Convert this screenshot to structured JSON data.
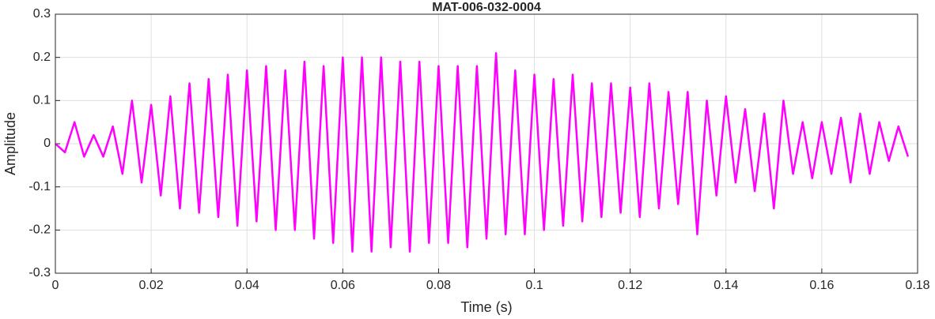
{
  "chart_data": {
    "type": "line",
    "title": "MAT-006-032-0004",
    "xlabel": "Time (s)",
    "ylabel": "Amplitude",
    "x": [
      0,
      0.002,
      0.004,
      0.006,
      0.008,
      0.01,
      0.012,
      0.014,
      0.016,
      0.018,
      0.02,
      0.022,
      0.024,
      0.026,
      0.028,
      0.03,
      0.032,
      0.034,
      0.036,
      0.038,
      0.04,
      0.042,
      0.044,
      0.046,
      0.048,
      0.05,
      0.052,
      0.054,
      0.056,
      0.058,
      0.06,
      0.062,
      0.064,
      0.066,
      0.068,
      0.07,
      0.072,
      0.074,
      0.076,
      0.078,
      0.08,
      0.082,
      0.084,
      0.086,
      0.088,
      0.09,
      0.092,
      0.094,
      0.096,
      0.098,
      0.1,
      0.102,
      0.104,
      0.106,
      0.108,
      0.11,
      0.112,
      0.114,
      0.116,
      0.118,
      0.12,
      0.122,
      0.124,
      0.126,
      0.128,
      0.13,
      0.132,
      0.134,
      0.136,
      0.138,
      0.14,
      0.142,
      0.144,
      0.146,
      0.148,
      0.15,
      0.152,
      0.154,
      0.156,
      0.158,
      0.16,
      0.162,
      0.164,
      0.166,
      0.168,
      0.17,
      0.172,
      0.174,
      0.176,
      0.178
    ],
    "series": [
      {
        "color": "#ff00ff",
        "values": [
          0,
          -0.02,
          0.05,
          -0.03,
          0.02,
          -0.03,
          0.04,
          -0.07,
          0.1,
          -0.09,
          0.09,
          -0.12,
          0.11,
          -0.15,
          0.14,
          -0.16,
          0.15,
          -0.17,
          0.16,
          -0.19,
          0.17,
          -0.18,
          0.18,
          -0.2,
          0.17,
          -0.2,
          0.19,
          -0.22,
          0.18,
          -0.23,
          0.2,
          -0.25,
          0.2,
          -0.25,
          0.2,
          -0.24,
          0.19,
          -0.25,
          0.19,
          -0.23,
          0.18,
          -0.23,
          0.18,
          -0.24,
          0.18,
          -0.22,
          0.21,
          -0.21,
          0.17,
          -0.21,
          0.16,
          -0.2,
          0.15,
          -0.19,
          0.16,
          -0.18,
          0.14,
          -0.17,
          0.14,
          -0.16,
          0.13,
          -0.17,
          0.14,
          -0.15,
          0.12,
          -0.14,
          0.12,
          -0.21,
          0.1,
          -0.12,
          0.11,
          -0.09,
          0.08,
          -0.11,
          0.07,
          -0.15,
          0.1,
          -0.07,
          0.05,
          -0.08,
          0.05,
          -0.07,
          0.06,
          -0.09,
          0.07,
          -0.07,
          0.05,
          -0.04,
          0.04,
          -0.03
        ]
      }
    ],
    "xlim": [
      0,
      0.18
    ],
    "xticks": [
      0,
      0.02,
      0.04,
      0.06,
      0.08,
      0.1,
      0.12,
      0.14,
      0.16,
      0.18
    ],
    "ylim": [
      -0.3,
      0.3
    ],
    "yticks": [
      -0.3,
      -0.2,
      -0.1,
      0,
      0.1,
      0.2,
      0.3
    ],
    "grid": true
  }
}
